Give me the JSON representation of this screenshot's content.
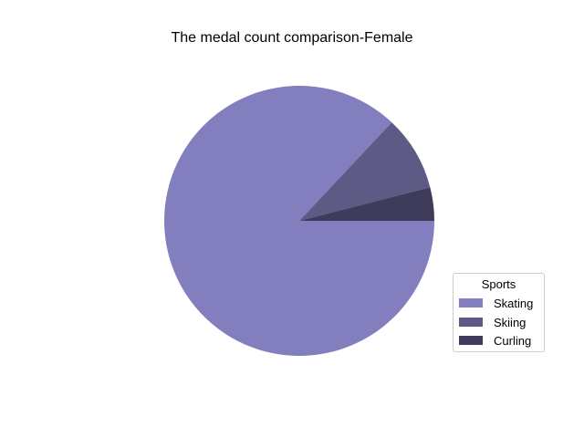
{
  "chart_data": {
    "type": "pie",
    "title": "The medal count comparison-Female",
    "labels": [
      "Skating",
      "Skiing",
      "Curling"
    ],
    "values": [
      87,
      9,
      4
    ],
    "colors": [
      "#837fbf",
      "#5d5a86",
      "#3f3c5b"
    ],
    "start_angle_deg": 0,
    "counterclock": false,
    "legend": {
      "title": "Sports",
      "placement": "lower-right"
    }
  }
}
